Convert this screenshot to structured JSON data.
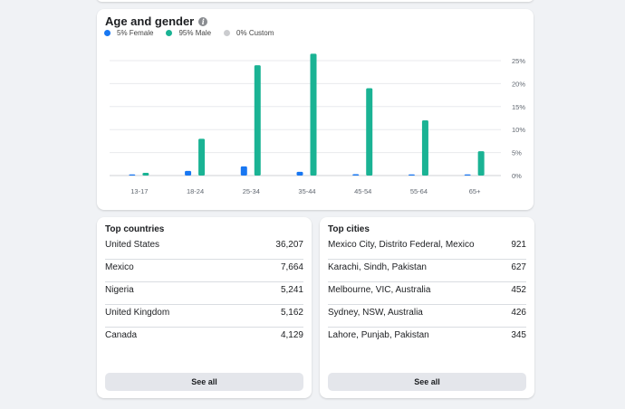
{
  "age_gender": {
    "title": "Age and gender",
    "info_icon": "info-icon",
    "legend": [
      {
        "label": "5% Female",
        "color": "#1877f2"
      },
      {
        "label": "95% Male",
        "color": "#1ab394"
      },
      {
        "label": "0% Custom",
        "color": "#cbcccf"
      }
    ]
  },
  "chart_data": {
    "type": "bar",
    "categories": [
      "13-17",
      "18-24",
      "25-34",
      "35-44",
      "45-54",
      "55-64",
      "65+"
    ],
    "series": [
      {
        "name": "Female",
        "color": "#1877f2",
        "values": [
          0.1,
          1.0,
          2.0,
          0.8,
          0.3,
          0.2,
          0.1
        ]
      },
      {
        "name": "Male",
        "color": "#1ab394",
        "values": [
          0.6,
          8.0,
          24.0,
          26.5,
          19.0,
          12.0,
          5.3
        ]
      }
    ],
    "ylim": [
      0,
      25
    ],
    "yticks": [
      "25%",
      "20%",
      "15%",
      "10%",
      "5%",
      "0%"
    ],
    "y_axis_side": "right",
    "grid": true
  },
  "top_countries": {
    "title": "Top countries",
    "rows": [
      {
        "name": "United States",
        "value": "36,207"
      },
      {
        "name": "Mexico",
        "value": "7,664"
      },
      {
        "name": "Nigeria",
        "value": "5,241"
      },
      {
        "name": "United Kingdom",
        "value": "5,162"
      },
      {
        "name": "Canada",
        "value": "4,129"
      }
    ],
    "button": "See all"
  },
  "top_cities": {
    "title": "Top cities",
    "rows": [
      {
        "name": "Mexico City, Distrito Federal, Mexico",
        "value": "921"
      },
      {
        "name": "Karachi, Sindh, Pakistan",
        "value": "627"
      },
      {
        "name": "Melbourne, VIC, Australia",
        "value": "452"
      },
      {
        "name": "Sydney, NSW, Australia",
        "value": "426"
      },
      {
        "name": "Lahore, Punjab, Pakistan",
        "value": "345"
      }
    ],
    "button": "See all"
  }
}
